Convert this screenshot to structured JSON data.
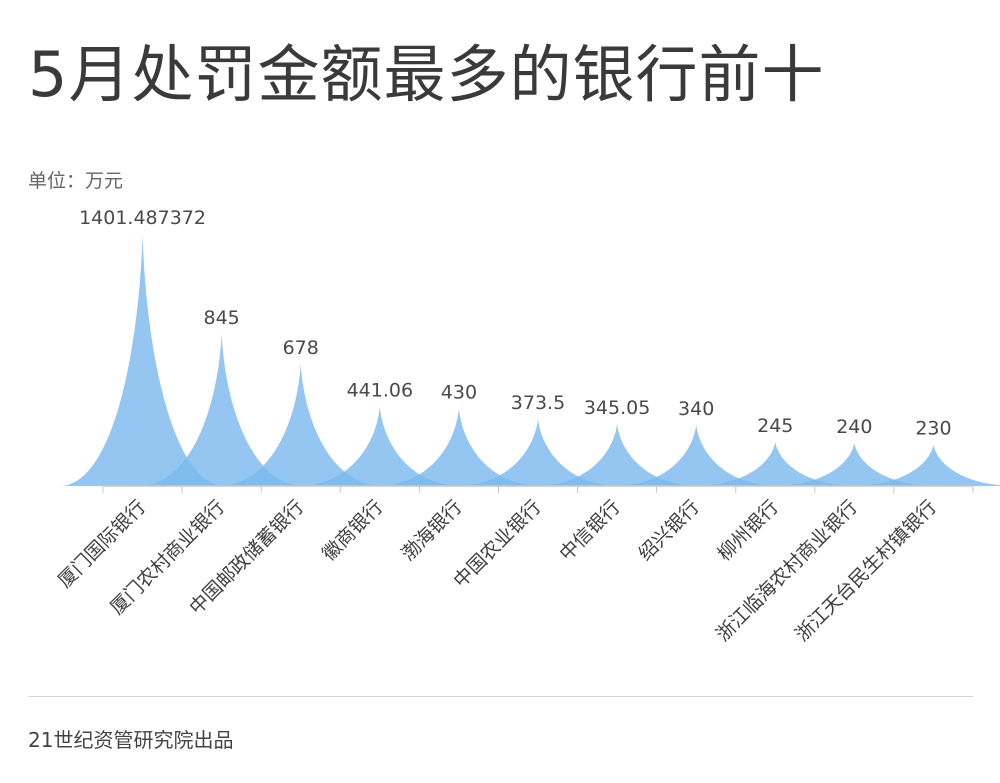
{
  "chart_data": {
    "type": "area",
    "title": "5月处罚金额最多的银行前十",
    "unit_label": "单位：万元",
    "categories": [
      "厦门国际银行",
      "厦门农村商业银行",
      "中国邮政储蓄银行",
      "徽商银行",
      "渤海银行",
      "中国农业银行",
      "中信银行",
      "绍兴银行",
      "柳州银行",
      "浙江临海农村商业银行",
      "浙江天台民生村镇银行"
    ],
    "values": [
      1401.487372,
      845,
      678,
      441.06,
      430,
      373.5,
      345.05,
      340,
      245,
      240,
      230
    ],
    "value_labels": [
      "1401.487372",
      "845",
      "678",
      "441.06",
      "430",
      "373.5",
      "345.05",
      "340",
      "245",
      "240",
      "230"
    ],
    "ylim": [
      0,
      1401.487372
    ],
    "grid": false,
    "legend": "none",
    "colors": {
      "fill": "#7db9ee",
      "axis": "#c8c8c8"
    }
  },
  "footer": {
    "credit": "21世纪资管研究院出品"
  }
}
